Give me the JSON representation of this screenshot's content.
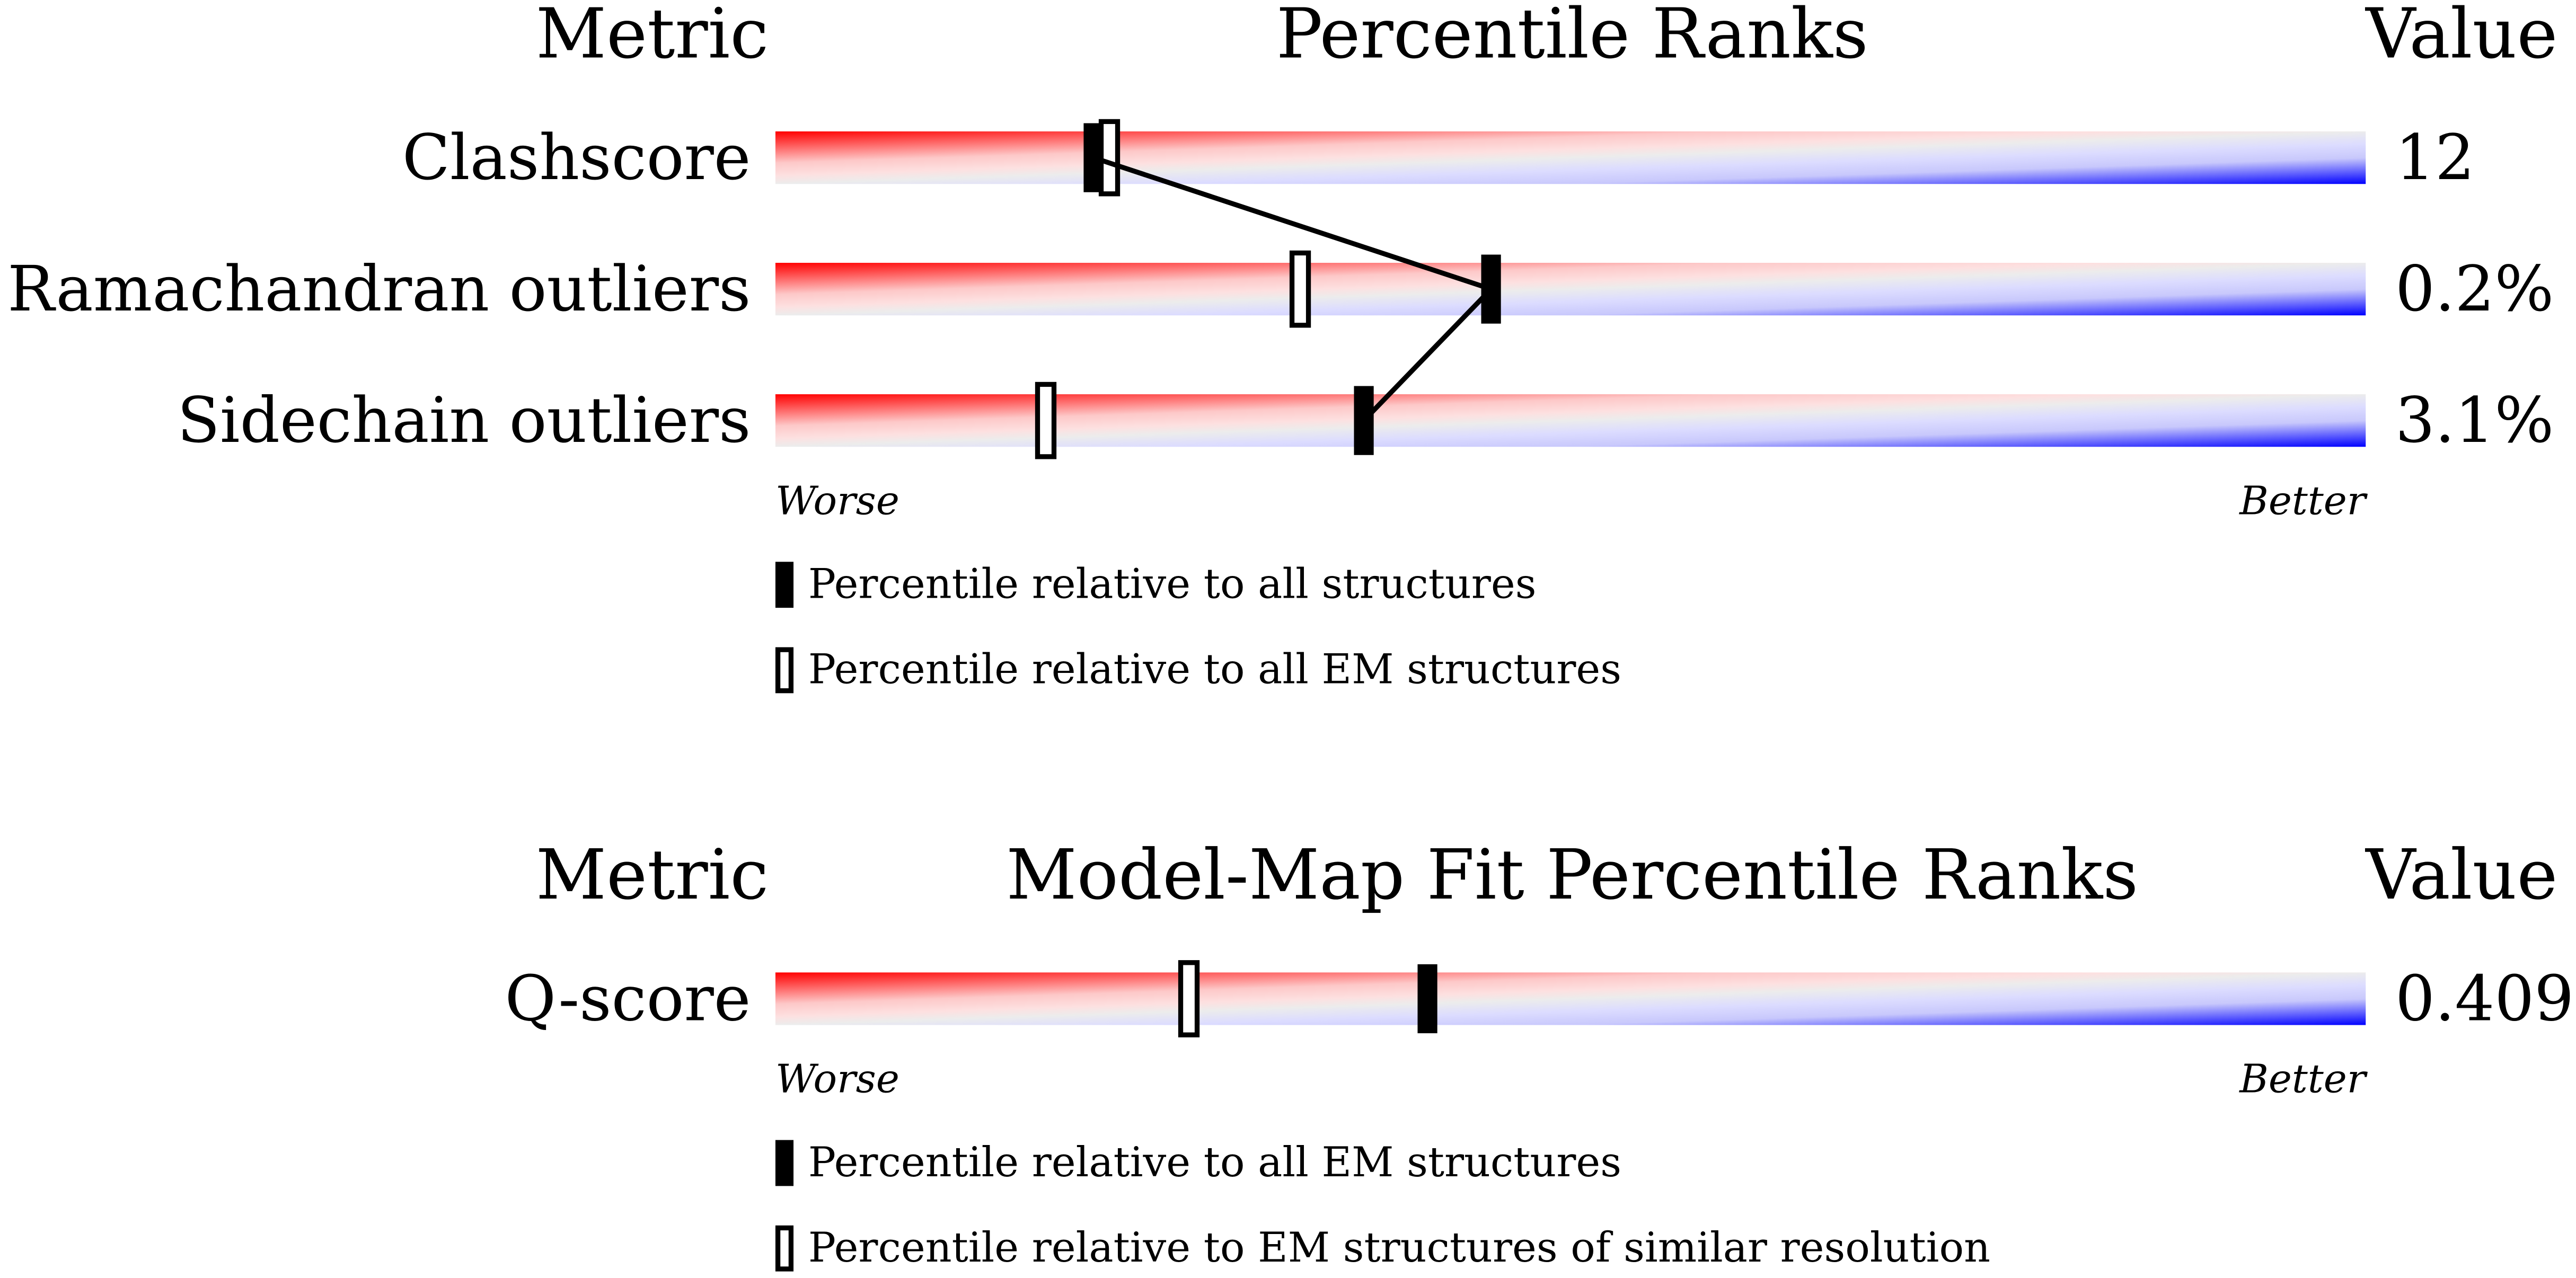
{
  "panels": [
    {
      "headers": {
        "metric": "Metric",
        "title": "Percentile Ranks",
        "value": "Value"
      },
      "xlim": [
        0,
        100
      ],
      "rows": [
        {
          "metric": "Clashscore",
          "value": "12",
          "percentile_filled": 20,
          "percentile_open": 21
        },
        {
          "metric": "Ramachandran outliers",
          "value": "0.2%",
          "percentile_filled": 45,
          "percentile_open": 33
        },
        {
          "metric": "Sidechain outliers",
          "value": "3.1%",
          "percentile_filled": 37,
          "percentile_open": 17
        }
      ],
      "worse": "Worse",
      "better": "Better",
      "legend_filled": "Percentile relative to all structures",
      "legend_open": "Percentile relative to all EM structures",
      "connect": true
    },
    {
      "headers": {
        "metric": "Metric",
        "title": "Model-Map Fit Percentile Ranks",
        "value": "Value"
      },
      "xlim": [
        0,
        100
      ],
      "rows": [
        {
          "metric": "Q-score",
          "value": "0.409",
          "percentile_filled": 41,
          "percentile_open": 26
        }
      ],
      "worse": "Worse",
      "better": "Better",
      "legend_filled": "Percentile relative to all EM structures",
      "legend_open": "Percentile relative to EM structures of similar resolution",
      "connect": false
    }
  ]
}
